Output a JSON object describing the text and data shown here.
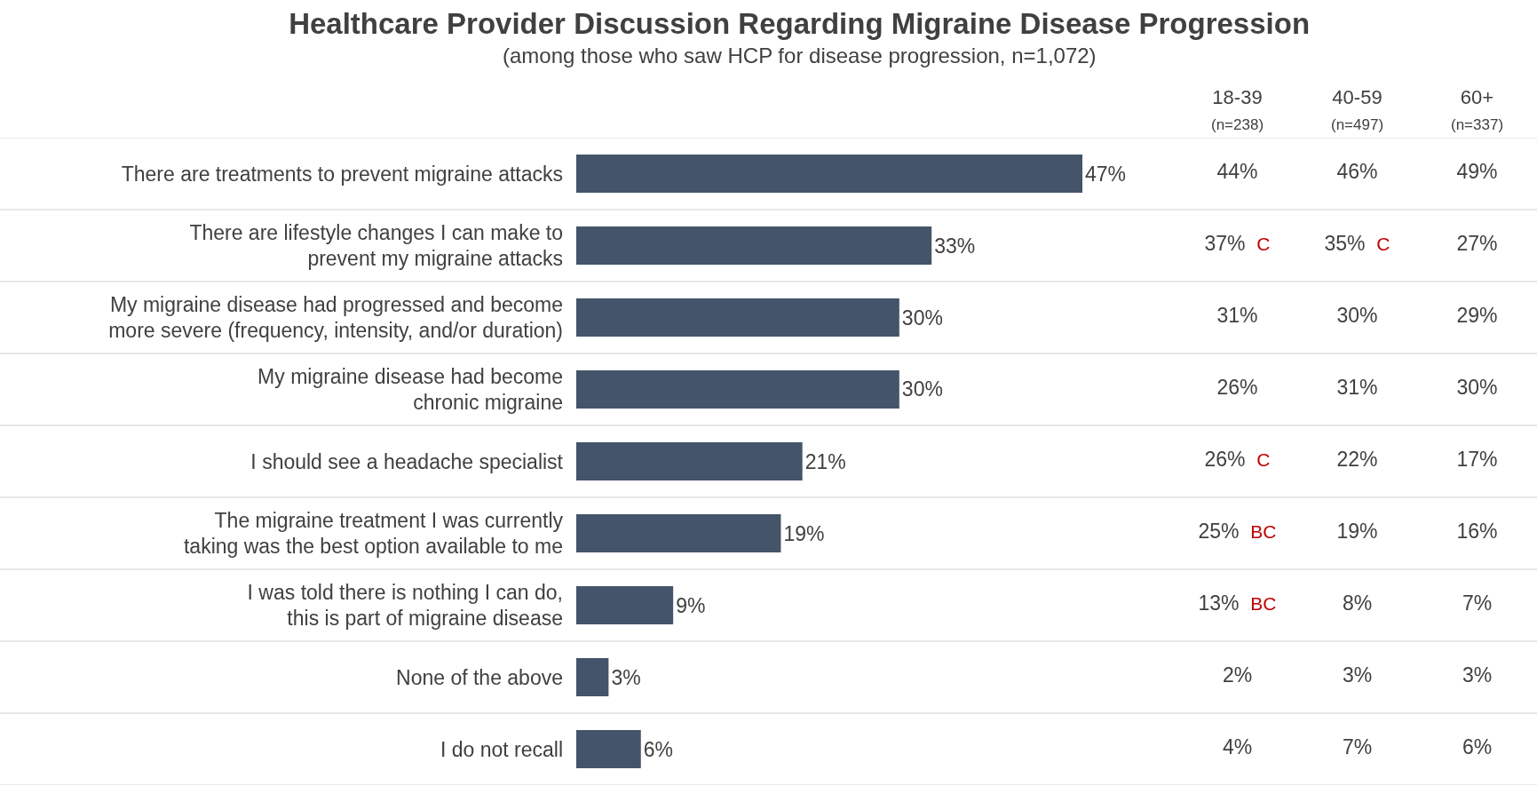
{
  "chart_data": [
    {
      "type": "bar",
      "orientation": "horizontal",
      "title": "Healthcare Provider Discussion Regarding Migraine Disease Progression",
      "subtitle": "(among those who saw HCP for disease progression, n=1,072)",
      "categories": [
        "There are treatments to prevent migraine attacks",
        "There are lifestyle changes I can make to\nprevent my migraine attacks",
        "My migraine disease had progressed and become\nmore severe (frequency, intensity, and/or duration)",
        "My migraine disease had become\nchronic migraine",
        "I should see a headache specialist",
        "The migraine treatment I was currently\ntaking was the best option available to me",
        "I was told there is nothing I can do,\nthis is part of migraine disease",
        "None of the above",
        "I do not recall"
      ],
      "values": [
        47,
        33,
        30,
        30,
        21,
        19,
        9,
        3,
        6
      ],
      "value_labels": [
        "47%",
        "33%",
        "30%",
        "30%",
        "21%",
        "19%",
        "9%",
        "3%",
        "6%"
      ],
      "color": "#44546a",
      "tick_labels": "y",
      "grid": "y",
      "legend": false
    },
    {
      "type": "other",
      "categories": [
        "18-39\n(n=238)",
        "40-59\n(n=497)",
        "60+\n(n=337)"
      ],
      "cell_labels": [
        [
          "44%",
          "46%",
          "49%"
        ],
        [
          "37% C",
          "35% C",
          "27%"
        ],
        [
          "31%",
          "30%",
          "29%"
        ],
        [
          "26%",
          "31%",
          "30%"
        ],
        [
          "26% C",
          "22%",
          "17%"
        ],
        [
          "25% BC",
          "19%",
          "16%"
        ],
        [
          "13% BC",
          "8%",
          "7%"
        ],
        [
          "2%",
          "3%",
          "3%"
        ],
        [
          "4%",
          "7%",
          "6%"
        ]
      ]
    }
  ]
}
